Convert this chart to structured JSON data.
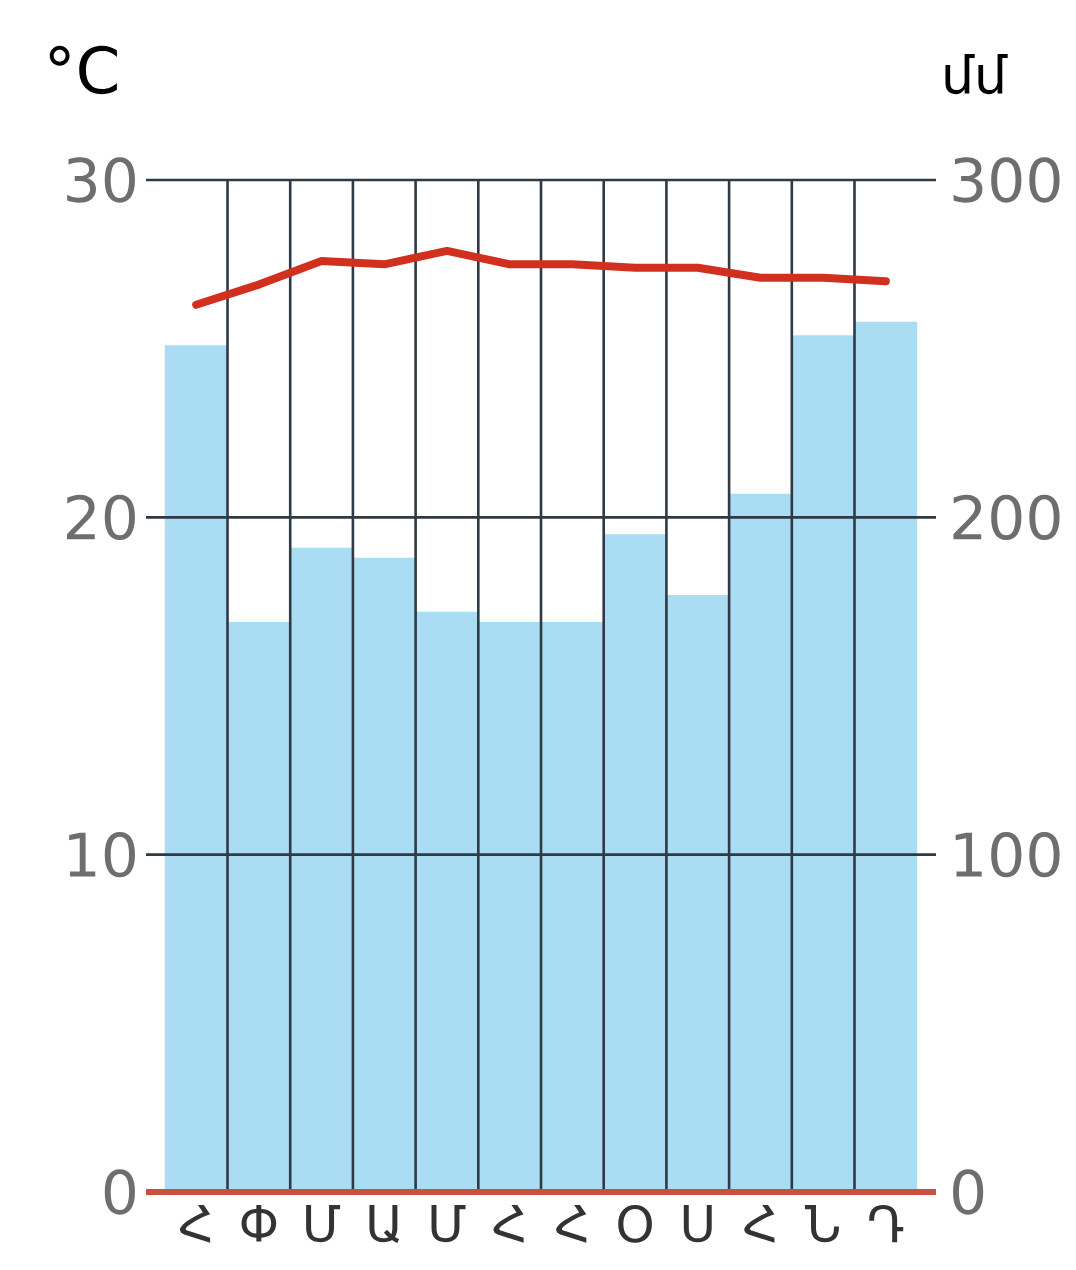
{
  "chart_data": {
    "type": "bar",
    "ylabel": "°C",
    "y2label": "մմ",
    "categories": [
      "Հ",
      "Փ",
      "Մ",
      "Ա",
      "Մ",
      "Հ",
      "Հ",
      "Օ",
      "Ս",
      "Հ",
      "Ն",
      "Դ"
    ],
    "series": [
      {
        "axis": "y2",
        "color": "#aadcf3",
        "values": [
          251,
          169,
          191,
          188,
          172,
          169,
          169,
          195,
          177,
          207,
          254,
          258
        ]
      },
      {
        "type": "line",
        "color": "#d2301f",
        "values": [
          26.3,
          26.9,
          27.6,
          27.5,
          27.9,
          27.5,
          27.5,
          27.4,
          27.4,
          27.1,
          27.1,
          27.0
        ]
      }
    ],
    "ylim": [
      0,
      30
    ],
    "yticks": [
      0,
      10,
      20,
      30
    ],
    "y2lim": [
      0,
      300
    ],
    "y2ticks": [
      0,
      100,
      200,
      300
    ],
    "grid": true
  }
}
